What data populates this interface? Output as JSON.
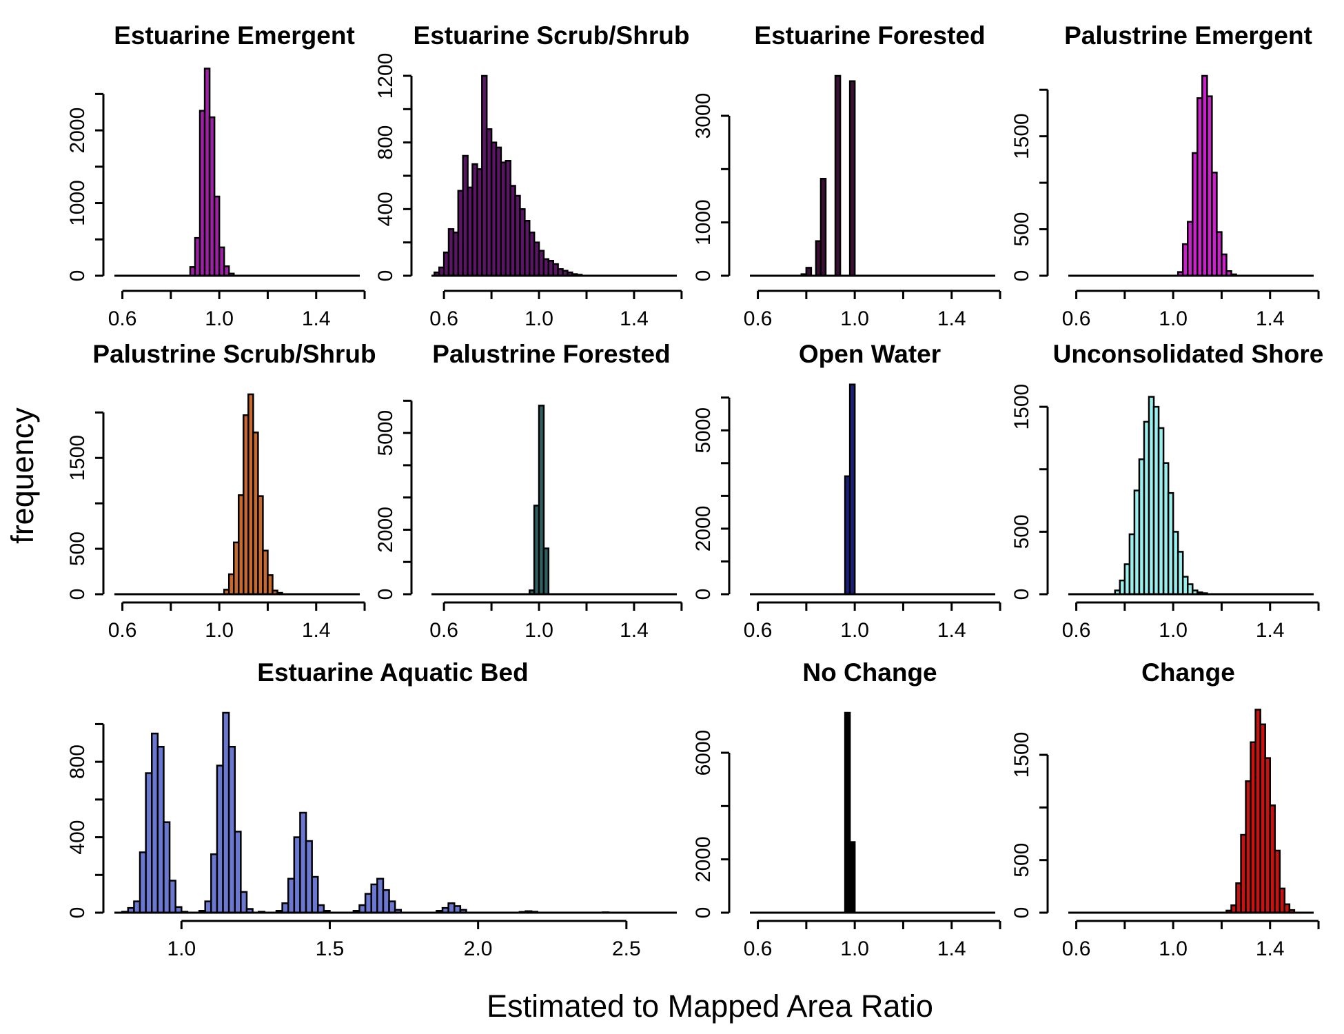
{
  "figure": {
    "ylabel": "frequency",
    "xlabel": "Estimated to Mapped Area Ratio"
  },
  "chart_data": [
    {
      "type": "bar",
      "title": "Estuarine Emergent",
      "color": "#a020a8",
      "xlim": [
        0.55,
        1.58
      ],
      "ylim": [
        0,
        2750
      ],
      "xticks": [
        0.6,
        0.8,
        1.0,
        1.2,
        1.4,
        1.6
      ],
      "xtick_labels": [
        "0.6",
        "",
        "1.0",
        "",
        "1.4",
        ""
      ],
      "yticks": [
        0,
        500,
        1000,
        1500,
        2000,
        2500
      ],
      "ytick_labels": [
        "0",
        "",
        "1000",
        "",
        "2000",
        ""
      ],
      "bin_width": 0.02,
      "bars": [
        [
          0.88,
          0.9,
          120
        ],
        [
          0.9,
          0.92,
          520
        ],
        [
          0.92,
          0.94,
          2270
        ],
        [
          0.94,
          0.96,
          2850
        ],
        [
          0.96,
          0.98,
          2180
        ],
        [
          0.98,
          1.0,
          1090
        ],
        [
          1.0,
          1.02,
          390
        ],
        [
          1.02,
          1.04,
          130
        ],
        [
          1.04,
          1.06,
          30
        ]
      ]
    },
    {
      "type": "bar",
      "title": "Estuarine Scrub/Shrub",
      "color": "#5c1466",
      "xlim": [
        0.53,
        1.58
      ],
      "ylim": [
        0,
        1200
      ],
      "xticks": [
        0.6,
        0.8,
        1.0,
        1.2,
        1.4,
        1.6
      ],
      "xtick_labels": [
        "0.6",
        "",
        "1.0",
        "",
        "1.4",
        ""
      ],
      "yticks": [
        0,
        200,
        400,
        600,
        800,
        1000,
        1200
      ],
      "ytick_labels": [
        "0",
        "",
        "400",
        "",
        "800",
        "",
        "1200"
      ],
      "bin_width": 0.02,
      "bars": [
        [
          0.56,
          0.58,
          20
        ],
        [
          0.58,
          0.6,
          50
        ],
        [
          0.6,
          0.62,
          140
        ],
        [
          0.62,
          0.64,
          280
        ],
        [
          0.64,
          0.66,
          260
        ],
        [
          0.66,
          0.68,
          510
        ],
        [
          0.68,
          0.7,
          720
        ],
        [
          0.7,
          0.72,
          530
        ],
        [
          0.72,
          0.74,
          670
        ],
        [
          0.74,
          0.76,
          640
        ],
        [
          0.76,
          0.78,
          1200
        ],
        [
          0.78,
          0.8,
          880
        ],
        [
          0.8,
          0.82,
          800
        ],
        [
          0.82,
          0.84,
          770
        ],
        [
          0.84,
          0.86,
          680
        ],
        [
          0.86,
          0.88,
          690
        ],
        [
          0.88,
          0.9,
          540
        ],
        [
          0.9,
          0.92,
          480
        ],
        [
          0.92,
          0.94,
          400
        ],
        [
          0.94,
          0.96,
          330
        ],
        [
          0.96,
          0.98,
          260
        ],
        [
          0.98,
          1.0,
          200
        ],
        [
          1.0,
          1.02,
          150
        ],
        [
          1.02,
          1.04,
          100
        ],
        [
          1.04,
          1.06,
          90
        ],
        [
          1.06,
          1.08,
          70
        ],
        [
          1.08,
          1.1,
          40
        ],
        [
          1.1,
          1.12,
          30
        ],
        [
          1.12,
          1.14,
          20
        ],
        [
          1.14,
          1.16,
          10
        ],
        [
          1.16,
          1.18,
          6
        ]
      ]
    },
    {
      "type": "bar",
      "title": "Estuarine Forested",
      "color": "#3d0f36",
      "xlim": [
        0.55,
        1.58
      ],
      "ylim": [
        0,
        3750
      ],
      "xticks": [
        0.6,
        0.8,
        1.0,
        1.2,
        1.4,
        1.6
      ],
      "xtick_labels": [
        "0.6",
        "",
        "1.0",
        "",
        "1.4",
        ""
      ],
      "yticks": [
        0,
        1000,
        2000,
        3000
      ],
      "ytick_labels": [
        "0",
        "1000",
        "",
        "3000"
      ],
      "bin_width": 0.02,
      "bars": [
        [
          0.78,
          0.8,
          30
        ],
        [
          0.8,
          0.82,
          150
        ],
        [
          0.84,
          0.86,
          650
        ],
        [
          0.86,
          0.88,
          1820
        ],
        [
          0.92,
          0.94,
          3750
        ],
        [
          0.98,
          1.0,
          3650
        ]
      ]
    },
    {
      "type": "bar",
      "title": "Palustrine Emergent",
      "color": "#cc22cc",
      "xlim": [
        0.55,
        1.58
      ],
      "ylim": [
        0,
        2150
      ],
      "xticks": [
        0.6,
        0.8,
        1.0,
        1.2,
        1.4,
        1.6
      ],
      "xtick_labels": [
        "0.6",
        "",
        "1.0",
        "",
        "1.4",
        ""
      ],
      "yticks": [
        0,
        500,
        1000,
        1500,
        2000
      ],
      "ytick_labels": [
        "0",
        "500",
        "",
        "1500",
        ""
      ],
      "bin_width": 0.02,
      "bars": [
        [
          1.02,
          1.04,
          40
        ],
        [
          1.04,
          1.06,
          340
        ],
        [
          1.06,
          1.08,
          580
        ],
        [
          1.08,
          1.1,
          1320
        ],
        [
          1.1,
          1.12,
          1910
        ],
        [
          1.12,
          1.14,
          2150
        ],
        [
          1.14,
          1.16,
          1930
        ],
        [
          1.16,
          1.18,
          1110
        ],
        [
          1.18,
          1.2,
          470
        ],
        [
          1.2,
          1.22,
          230
        ],
        [
          1.22,
          1.24,
          50
        ],
        [
          1.24,
          1.26,
          15
        ]
      ]
    },
    {
      "type": "bar",
      "title": "Palustrine Scrub/Shrub",
      "color": "#c8692e",
      "xlim": [
        0.55,
        1.58
      ],
      "ylim": [
        0,
        2200
      ],
      "xticks": [
        0.6,
        0.8,
        1.0,
        1.2,
        1.4,
        1.6
      ],
      "xtick_labels": [
        "0.6",
        "",
        "1.0",
        "",
        "1.4",
        ""
      ],
      "yticks": [
        0,
        500,
        1000,
        1500,
        2000
      ],
      "ytick_labels": [
        "0",
        "500",
        "",
        "1500",
        ""
      ],
      "bin_width": 0.02,
      "bars": [
        [
          1.02,
          1.04,
          50
        ],
        [
          1.04,
          1.06,
          220
        ],
        [
          1.06,
          1.08,
          570
        ],
        [
          1.08,
          1.1,
          1090
        ],
        [
          1.1,
          1.12,
          1970
        ],
        [
          1.12,
          1.14,
          2200
        ],
        [
          1.14,
          1.16,
          1780
        ],
        [
          1.16,
          1.18,
          1080
        ],
        [
          1.18,
          1.2,
          480
        ],
        [
          1.2,
          1.22,
          210
        ],
        [
          1.22,
          1.24,
          40
        ],
        [
          1.24,
          1.26,
          15
        ]
      ]
    },
    {
      "type": "bar",
      "title": "Palustrine Forested",
      "color": "#2f5f60",
      "xlim": [
        0.53,
        1.58
      ],
      "ylim": [
        0,
        6200
      ],
      "xticks": [
        0.6,
        0.8,
        1.0,
        1.2,
        1.4,
        1.6
      ],
      "xtick_labels": [
        "0.6",
        "",
        "1.0",
        "",
        "1.4",
        ""
      ],
      "yticks": [
        0,
        1000,
        2000,
        3000,
        4000,
        5000,
        6000
      ],
      "ytick_labels": [
        "0",
        "",
        "2000",
        "",
        "",
        "5000",
        ""
      ],
      "bin_width": 0.02,
      "bars": [
        [
          0.96,
          0.98,
          120
        ],
        [
          0.98,
          1.0,
          2750
        ],
        [
          1.0,
          1.02,
          5850
        ],
        [
          1.02,
          1.04,
          1420
        ]
      ]
    },
    {
      "type": "bar",
      "title": "Open Water",
      "color": "#1a1f7a",
      "xlim": [
        0.55,
        1.58
      ],
      "ylim": [
        0,
        6100
      ],
      "xticks": [
        0.6,
        0.8,
        1.0,
        1.2,
        1.4,
        1.6
      ],
      "xtick_labels": [
        "0.6",
        "",
        "1.0",
        "",
        "1.4",
        ""
      ],
      "yticks": [
        0,
        1000,
        2000,
        3000,
        4000,
        5000,
        6000
      ],
      "ytick_labels": [
        "0",
        "",
        "2000",
        "",
        "",
        "5000",
        ""
      ],
      "bin_width": 0.02,
      "bars": [
        [
          0.96,
          0.98,
          3600
        ],
        [
          0.98,
          1.0,
          6400
        ]
      ]
    },
    {
      "type": "bar",
      "title": "Unconsolidated Shore",
      "color": "#99f0ee",
      "xlim": [
        0.55,
        1.58
      ],
      "ylim": [
        0,
        1600
      ],
      "xticks": [
        0.6,
        0.8,
        1.0,
        1.2,
        1.4,
        1.6
      ],
      "xtick_labels": [
        "0.6",
        "",
        "1.0",
        "",
        "1.4",
        ""
      ],
      "yticks": [
        0,
        500,
        1000,
        1500
      ],
      "ytick_labels": [
        "0",
        "500",
        "",
        "1500"
      ],
      "bin_width": 0.02,
      "bars": [
        [
          0.76,
          0.78,
          30
        ],
        [
          0.78,
          0.8,
          110
        ],
        [
          0.8,
          0.82,
          240
        ],
        [
          0.82,
          0.84,
          480
        ],
        [
          0.84,
          0.86,
          830
        ],
        [
          0.86,
          0.88,
          1080
        ],
        [
          0.88,
          0.9,
          1380
        ],
        [
          0.9,
          0.92,
          1580
        ],
        [
          0.92,
          0.94,
          1500
        ],
        [
          0.94,
          0.96,
          1330
        ],
        [
          0.96,
          0.98,
          1050
        ],
        [
          0.98,
          1.0,
          810
        ],
        [
          1.0,
          1.02,
          500
        ],
        [
          1.02,
          1.04,
          340
        ],
        [
          1.04,
          1.06,
          140
        ],
        [
          1.06,
          1.08,
          80
        ],
        [
          1.08,
          1.1,
          30
        ],
        [
          1.1,
          1.12,
          15
        ],
        [
          1.12,
          1.14,
          8
        ]
      ]
    },
    {
      "type": "bar",
      "title": "Estuarine Aquatic Bed",
      "color": "#6b78d1",
      "xlim": [
        0.76,
        2.67
      ],
      "ylim": [
        0,
        1060
      ],
      "xticks": [
        1.0,
        1.5,
        2.0,
        2.5
      ],
      "xtick_labels": [
        "1.0",
        "1.5",
        "2.0",
        "2.5"
      ],
      "xaxis_range": [
        1.0,
        2.5
      ],
      "yticks": [
        0,
        200,
        400,
        600,
        800,
        1000
      ],
      "ytick_labels": [
        "0",
        "",
        "400",
        "",
        "800",
        ""
      ],
      "bin_width": 0.02,
      "bars": [
        [
          0.8,
          0.82,
          5
        ],
        [
          0.82,
          0.84,
          25
        ],
        [
          0.84,
          0.86,
          60
        ],
        [
          0.86,
          0.88,
          320
        ],
        [
          0.88,
          0.9,
          740
        ],
        [
          0.9,
          0.92,
          950
        ],
        [
          0.92,
          0.94,
          880
        ],
        [
          0.94,
          0.96,
          480
        ],
        [
          0.96,
          0.98,
          170
        ],
        [
          0.98,
          1.0,
          30
        ],
        [
          1.0,
          1.02,
          5
        ],
        [
          1.06,
          1.08,
          10
        ],
        [
          1.08,
          1.1,
          60
        ],
        [
          1.1,
          1.12,
          310
        ],
        [
          1.12,
          1.14,
          780
        ],
        [
          1.14,
          1.16,
          1060
        ],
        [
          1.16,
          1.18,
          880
        ],
        [
          1.18,
          1.2,
          430
        ],
        [
          1.2,
          1.22,
          110
        ],
        [
          1.22,
          1.24,
          20
        ],
        [
          1.26,
          1.28,
          5
        ],
        [
          1.32,
          1.34,
          10
        ],
        [
          1.34,
          1.36,
          50
        ],
        [
          1.36,
          1.38,
          180
        ],
        [
          1.38,
          1.4,
          400
        ],
        [
          1.4,
          1.42,
          530
        ],
        [
          1.42,
          1.44,
          380
        ],
        [
          1.44,
          1.46,
          190
        ],
        [
          1.46,
          1.48,
          40
        ],
        [
          1.48,
          1.5,
          10
        ],
        [
          1.58,
          1.6,
          10
        ],
        [
          1.6,
          1.62,
          40
        ],
        [
          1.62,
          1.64,
          100
        ],
        [
          1.64,
          1.66,
          150
        ],
        [
          1.66,
          1.68,
          180
        ],
        [
          1.68,
          1.7,
          120
        ],
        [
          1.7,
          1.72,
          60
        ],
        [
          1.72,
          1.74,
          15
        ],
        [
          1.86,
          1.88,
          10
        ],
        [
          1.88,
          1.9,
          25
        ],
        [
          1.9,
          1.92,
          50
        ],
        [
          1.92,
          1.94,
          35
        ],
        [
          1.94,
          1.96,
          15
        ],
        [
          2.14,
          2.16,
          4
        ],
        [
          2.16,
          2.18,
          8
        ],
        [
          2.18,
          2.2,
          5
        ],
        [
          2.42,
          2.44,
          2
        ]
      ]
    },
    {
      "type": "bar",
      "title": "No Change",
      "color": "#000000",
      "xlim": [
        0.55,
        1.58
      ],
      "ylim": [
        0,
        7500
      ],
      "xticks": [
        0.6,
        0.8,
        1.0,
        1.2,
        1.4,
        1.6
      ],
      "xtick_labels": [
        "0.6",
        "",
        "1.0",
        "",
        "1.4",
        ""
      ],
      "yticks": [
        0,
        2000,
        4000,
        6000
      ],
      "ytick_labels": [
        "0",
        "2000",
        "",
        "6000"
      ],
      "bin_width": 0.02,
      "bars": [
        [
          0.96,
          0.98,
          7500
        ],
        [
          0.98,
          1.0,
          2650
        ]
      ]
    },
    {
      "type": "bar",
      "title": "Change",
      "color": "#cc1111",
      "xlim": [
        0.55,
        1.58
      ],
      "ylim": [
        0,
        1900
      ],
      "xticks": [
        0.6,
        0.8,
        1.0,
        1.2,
        1.4,
        1.6
      ],
      "xtick_labels": [
        "0.6",
        "",
        "1.0",
        "",
        "1.4",
        ""
      ],
      "yticks": [
        0,
        500,
        1000,
        1500
      ],
      "ytick_labels": [
        "0",
        "500",
        "",
        "1500"
      ],
      "bin_width": 0.02,
      "bars": [
        [
          1.22,
          1.24,
          20
        ],
        [
          1.24,
          1.26,
          70
        ],
        [
          1.26,
          1.28,
          280
        ],
        [
          1.28,
          1.3,
          740
        ],
        [
          1.3,
          1.32,
          1250
        ],
        [
          1.32,
          1.34,
          1620
        ],
        [
          1.34,
          1.36,
          1930
        ],
        [
          1.36,
          1.38,
          1790
        ],
        [
          1.38,
          1.4,
          1470
        ],
        [
          1.4,
          1.42,
          1020
        ],
        [
          1.42,
          1.44,
          590
        ],
        [
          1.44,
          1.46,
          230
        ],
        [
          1.46,
          1.48,
          80
        ],
        [
          1.48,
          1.5,
          25
        ]
      ]
    }
  ]
}
